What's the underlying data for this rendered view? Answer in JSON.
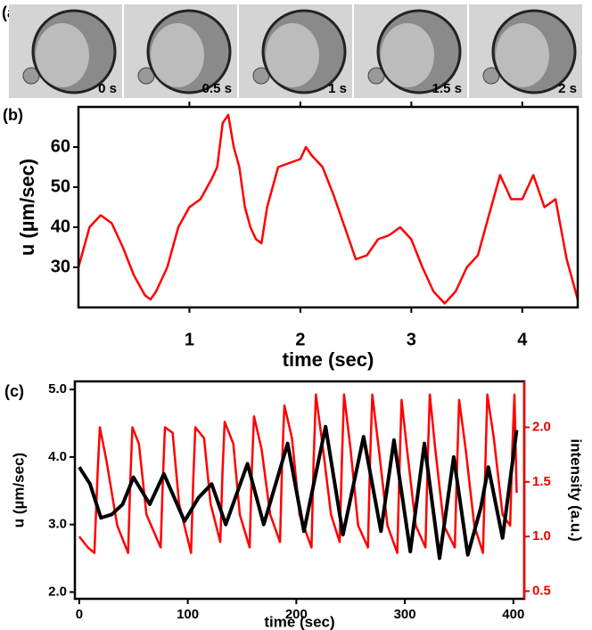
{
  "chart_data": [
    {
      "type": "image-strip",
      "panel_label": "(a)",
      "frame_labels": [
        "0 s",
        "0.5 s",
        "1 s",
        "1.5 s",
        "2 s"
      ]
    },
    {
      "type": "line",
      "panel_label": "(b)",
      "x_label": "time (sec)",
      "y_label": "u (µm/sec)",
      "xlim": [
        0,
        4.5
      ],
      "ylim": [
        20,
        70
      ],
      "xticks": [
        1,
        2,
        3,
        4
      ],
      "yticks": [
        30,
        40,
        50,
        60
      ],
      "series": [
        {
          "color": "#ff0000",
          "x": [
            0,
            0.1,
            0.2,
            0.3,
            0.4,
            0.5,
            0.6,
            0.65,
            0.7,
            0.8,
            0.9,
            1.0,
            1.1,
            1.2,
            1.25,
            1.3,
            1.35,
            1.4,
            1.45,
            1.5,
            1.55,
            1.6,
            1.65,
            1.7,
            1.75,
            1.8,
            1.9,
            2.0,
            2.05,
            2.1,
            2.2,
            2.3,
            2.4,
            2.5,
            2.6,
            2.7,
            2.8,
            2.9,
            3.0,
            3.1,
            3.2,
            3.3,
            3.4,
            3.5,
            3.6,
            3.7,
            3.8,
            3.9,
            4.0,
            4.1,
            4.2,
            4.3,
            4.4,
            4.5
          ],
          "values": [
            30,
            40,
            43,
            41,
            35,
            28,
            23,
            22,
            24,
            30,
            40,
            45,
            47,
            52,
            55,
            66,
            68,
            60,
            55,
            45,
            40,
            37,
            36,
            45,
            50,
            55,
            56,
            57,
            60,
            58,
            55,
            48,
            40,
            32,
            33,
            37,
            38,
            40,
            37,
            30,
            24,
            21,
            24,
            30,
            33,
            43,
            53,
            47,
            47,
            53,
            45,
            47,
            32,
            22
          ]
        }
      ]
    },
    {
      "type": "line",
      "panel_label": "(c)",
      "x_label": "time (sec)",
      "y_label": "u (µm/sec)",
      "y2_label": "intensity (a.u.)",
      "xlim": [
        -4,
        410
      ],
      "ylim": [
        1.9,
        5.12
      ],
      "y2lim": [
        0.43,
        2.42
      ],
      "xticks": [
        0,
        100,
        200,
        300,
        400
      ],
      "yticks": [
        {
          "value": 2,
          "label": "2.0"
        },
        {
          "value": 3,
          "label": "3.0"
        },
        {
          "value": 4,
          "label": "4.0"
        },
        {
          "value": 5,
          "label": "5.0"
        }
      ],
      "y2ticks": [
        0.5,
        {
          "value": 1,
          "label": "1.0"
        },
        1.5,
        {
          "value": 2,
          "label": "2.0"
        }
      ],
      "series": [
        {
          "color": "#ff0000",
          "axis": "y2",
          "x": [
            0,
            8,
            14,
            17,
            19,
            25,
            35,
            45,
            47,
            49,
            55,
            62,
            75,
            77,
            79,
            86,
            92,
            103,
            105,
            107,
            115,
            121,
            130,
            132,
            134,
            142,
            148,
            157,
            159,
            161,
            168,
            176,
            185,
            187,
            189,
            196,
            203,
            214,
            216,
            218,
            224,
            232,
            240,
            242,
            244,
            250,
            257,
            266,
            268,
            270,
            276,
            284,
            293,
            295,
            297,
            302,
            310,
            319,
            321,
            323,
            328,
            336,
            346,
            348,
            350,
            356,
            364,
            372,
            374,
            376,
            382,
            390,
            397,
            399,
            401,
            403
          ],
          "values": [
            1.0,
            0.9,
            0.85,
            1.6,
            2.0,
            1.7,
            1.1,
            0.85,
            1.5,
            2.0,
            1.85,
            1.2,
            0.9,
            1.5,
            2.0,
            1.95,
            1.3,
            0.85,
            1.5,
            2.0,
            1.9,
            1.3,
            0.95,
            1.6,
            2.05,
            1.85,
            1.2,
            0.9,
            1.6,
            2.1,
            1.8,
            1.2,
            0.95,
            1.7,
            2.2,
            1.9,
            1.2,
            0.9,
            1.7,
            2.3,
            1.85,
            1.2,
            0.95,
            1.7,
            2.3,
            1.8,
            1.1,
            0.9,
            1.7,
            2.3,
            1.8,
            1.1,
            0.85,
            1.6,
            2.25,
            1.8,
            1.1,
            0.9,
            1.7,
            2.3,
            1.8,
            1.1,
            0.9,
            1.6,
            2.25,
            1.8,
            1.1,
            0.85,
            1.6,
            2.3,
            1.9,
            1.2,
            1.1,
            1.8,
            2.3,
            1.4
          ]
        },
        {
          "color": "#000000",
          "axis": "y",
          "x": [
            0,
            10,
            20,
            30,
            40,
            50,
            65,
            78,
            97,
            110,
            122,
            135,
            155,
            170,
            192,
            207,
            227,
            243,
            262,
            278,
            290,
            305,
            318,
            332,
            345,
            358,
            370,
            377,
            390,
            403
          ],
          "values": [
            3.85,
            3.6,
            3.1,
            3.15,
            3.3,
            3.7,
            3.3,
            3.75,
            3.05,
            3.4,
            3.6,
            3.0,
            3.9,
            3.0,
            4.2,
            2.9,
            4.45,
            2.85,
            4.3,
            2.9,
            4.25,
            2.6,
            4.2,
            2.5,
            4.0,
            2.55,
            3.25,
            3.85,
            2.8,
            4.4
          ]
        }
      ]
    }
  ]
}
